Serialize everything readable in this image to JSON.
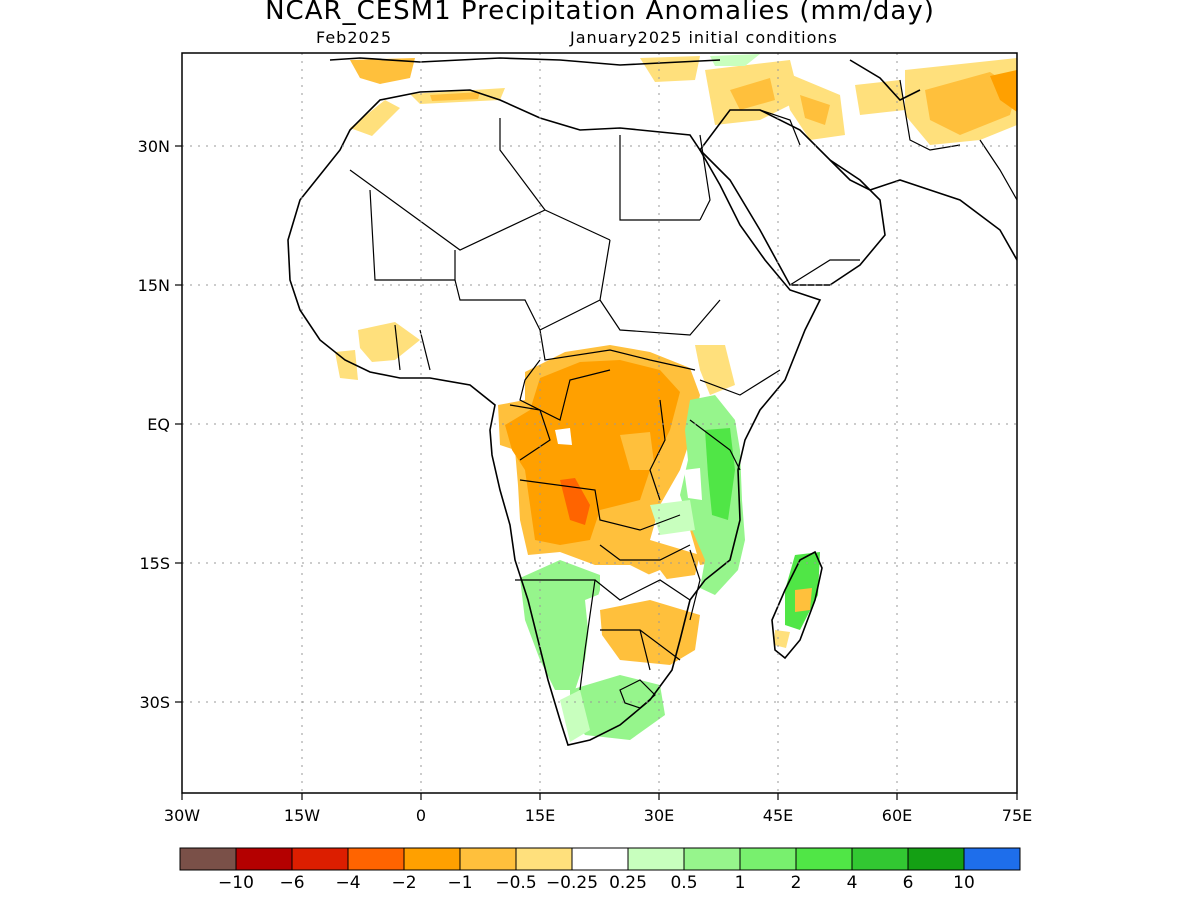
{
  "title": "NCAR_CESM1 Precipitation Anomalies (mm/day)",
  "subtitle_left": "Feb2025",
  "subtitle_right": "January2025 initial conditions",
  "lon_labels": [
    "30W",
    "15W",
    "0",
    "15E",
    "30E",
    "45E",
    "60E",
    "75E"
  ],
  "lat_labels": [
    "30N",
    "15N",
    "EQ",
    "15S",
    "30S"
  ],
  "colorbar": {
    "colors": [
      "#7a5048",
      "#b40000",
      "#dc1e00",
      "#ff6400",
      "#ffa000",
      "#ffc03c",
      "#ffe07c",
      "#ffffff",
      "#c8ffbe",
      "#96f58c",
      "#78f06e",
      "#50e646",
      "#32c832",
      "#14a014",
      "#1e6eeb"
    ],
    "labels": [
      "-10",
      "-6",
      "-4",
      "-2",
      "-1",
      "-0.5",
      "-0.25",
      "0.25",
      "0.5",
      "1",
      "2",
      "4",
      "6",
      "10"
    ]
  },
  "chart_data": {
    "type": "heatmap",
    "title": "NCAR_CESM1 Precipitation Anomalies (mm/day)",
    "forecast_month": "Feb2025",
    "initial_conditions": "January2025 initial conditions",
    "lon_range": [
      -30,
      75
    ],
    "lat_range": [
      -40,
      40
    ],
    "color_levels": [
      -10,
      -6,
      -4,
      -2,
      -1,
      -0.5,
      -0.25,
      0.25,
      0.5,
      1,
      2,
      4,
      6,
      10
    ],
    "grid": true
  }
}
